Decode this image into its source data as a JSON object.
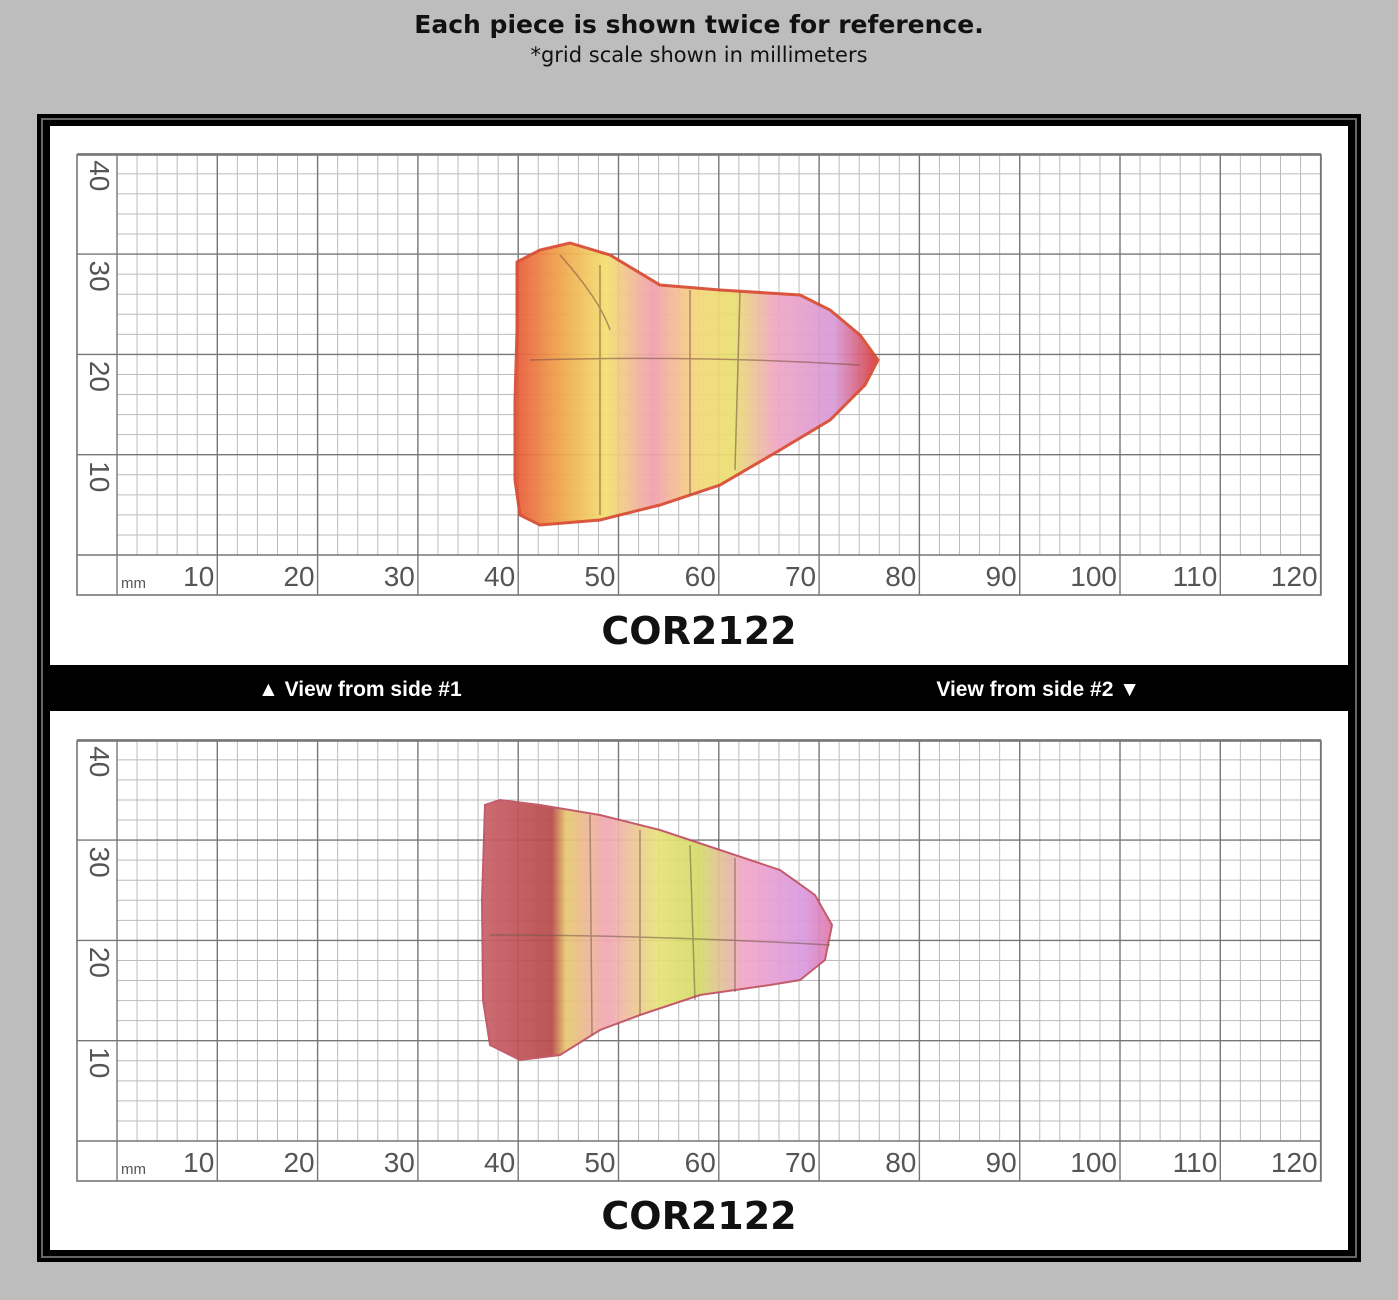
{
  "header": {
    "title": "Each piece is shown twice for reference.",
    "subtitle": "*grid scale shown in millimeters"
  },
  "panels": [
    {
      "code": "COR2122",
      "unit": "mm",
      "x_labels": [
        "10",
        "20",
        "30",
        "40",
        "50",
        "60",
        "70",
        "80",
        "90",
        "100",
        "110",
        "120"
      ],
      "y_labels": [
        "10",
        "20",
        "30",
        "40"
      ]
    },
    {
      "code": "COR2122",
      "unit": "mm",
      "x_labels": [
        "10",
        "20",
        "30",
        "40",
        "50",
        "60",
        "70",
        "80",
        "90",
        "100",
        "110",
        "120"
      ],
      "y_labels": [
        "10",
        "20",
        "30",
        "40"
      ]
    }
  ],
  "divider": {
    "left": "▲ View from side #1",
    "right": "View from side #2 ▼"
  }
}
